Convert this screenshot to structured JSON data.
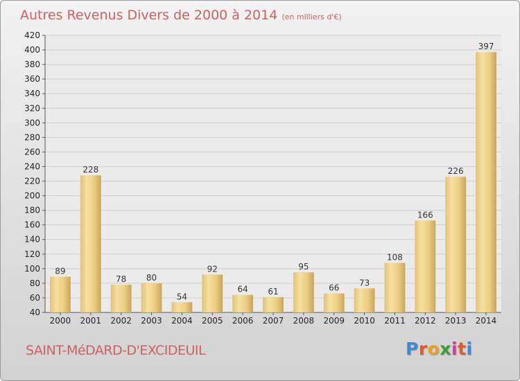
{
  "header": {
    "title": "Autres Revenus Divers de 2000 à 2014",
    "unit": "(en milliers d'€)"
  },
  "footer": {
    "commune": "SAINT-MéDARD-D'EXCIDEUIL",
    "logo_letters": [
      "P",
      "r",
      "o",
      "x",
      "i",
      "t",
      "i"
    ],
    "logo_colors": [
      "#3a8ad6",
      "#e05a2a",
      "#e8a21c",
      "#3a9d3a",
      "#d33aa0",
      "#e05a2a",
      "#3a8ad6"
    ]
  },
  "chart_data": {
    "type": "bar",
    "title": "Autres Revenus Divers de 2000 à 2014",
    "subtitle": "(en milliers d'€)",
    "categories": [
      "2000",
      "2001",
      "2002",
      "2003",
      "2004",
      "2005",
      "2006",
      "2007",
      "2008",
      "2009",
      "2010",
      "2011",
      "2012",
      "2013",
      "2014"
    ],
    "values": [
      89,
      228,
      78,
      80,
      54,
      92,
      64,
      61,
      95,
      66,
      73,
      108,
      166,
      226,
      397
    ],
    "ylim": [
      40,
      420
    ],
    "ytick_step": 20,
    "grid": true,
    "bar_color": "#f0d48a",
    "xlabel": "",
    "ylabel": ""
  }
}
